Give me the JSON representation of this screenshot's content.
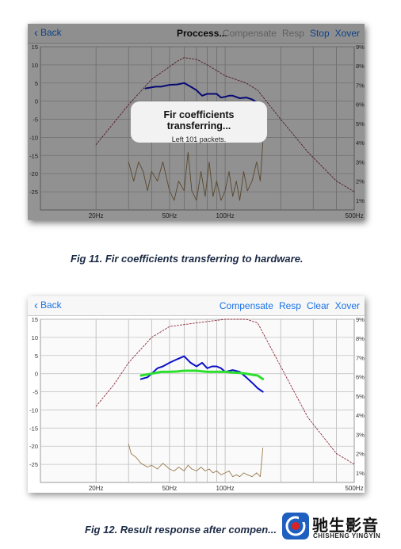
{
  "figure1": {
    "nav": {
      "back_label": "Back",
      "title": "Proccess...",
      "actions": [
        {
          "label": "Compensate",
          "enabled": false
        },
        {
          "label": "Resp",
          "enabled": false
        },
        {
          "label": "Stop",
          "enabled": true
        },
        {
          "label": "Xover",
          "enabled": true
        }
      ]
    },
    "dialog": {
      "title": "Fir coefficients transferring...",
      "message": "Left 101 packets."
    },
    "caption": "Fig 11. Fir coefficients transferring to hardware."
  },
  "figure2": {
    "nav": {
      "back_label": "Back",
      "actions": [
        {
          "label": "Compensate",
          "enabled": true
        },
        {
          "label": "Resp",
          "enabled": true
        },
        {
          "label": "Clear",
          "enabled": true
        },
        {
          "label": "Xover",
          "enabled": true
        }
      ]
    },
    "caption": "Fig 12. Result response after compen..."
  },
  "logo": {
    "text": "驰生影音",
    "subtext": "CHISHENG YINGYIN"
  },
  "colors": {
    "accent": "#1a73e8",
    "disabled": "#a6a6a6",
    "response": "#0b10c8",
    "compensated": "#2ee02e",
    "distortion": "#9a7b4f",
    "crossover": "#8b2a3a"
  },
  "chart_data": [
    {
      "type": "line",
      "panel": "fig11",
      "xscale": "log",
      "xlim": [
        10,
        500
      ],
      "ylim": [
        -30,
        15
      ],
      "y2lim": [
        0.5,
        9
      ],
      "y_ticks": [
        "15",
        "10",
        "5",
        "0",
        "-5",
        "-10",
        "-15",
        "-20",
        "-25"
      ],
      "y2_ticks": [
        "9%",
        "8%",
        "7%",
        "6%",
        "5%",
        "4%",
        "3%",
        "2%",
        "1%"
      ],
      "x_ticks": [
        "20Hz",
        "50Hz",
        "100Hz",
        "500Hz"
      ],
      "series": [
        {
          "role": "crossover",
          "axis": "y",
          "x": [
            20,
            30,
            40,
            55,
            60,
            70,
            80,
            100,
            130,
            150,
            200,
            280,
            400,
            500
          ],
          "y": [
            -12,
            -1,
            6,
            11,
            12,
            11.5,
            10,
            7,
            5,
            3,
            -5,
            -14,
            -22,
            -25
          ]
        },
        {
          "role": "response",
          "axis": "y",
          "x": [
            37,
            42,
            45,
            50,
            55,
            60,
            65,
            70,
            75,
            80,
            85,
            90,
            95,
            100,
            105,
            110,
            120,
            130,
            140,
            150,
            160
          ],
          "y": [
            3.5,
            4,
            4,
            4.5,
            4.6,
            5,
            4,
            3,
            1.5,
            2,
            2,
            2,
            1,
            1.2,
            1.5,
            1.5,
            0.8,
            1,
            0.5,
            -0.5,
            -1
          ]
        },
        {
          "role": "distortion",
          "axis": "y2",
          "x": [
            30,
            32,
            34,
            36,
            38,
            40,
            43,
            46,
            50,
            53,
            56,
            60,
            63,
            66,
            70,
            74,
            78,
            82,
            86,
            90,
            95,
            100,
            105,
            110,
            115,
            120,
            126,
            132,
            140,
            148,
            155,
            160
          ],
          "y": [
            3,
            2,
            3,
            2.5,
            1.5,
            2.5,
            2,
            3,
            1.5,
            1,
            2,
            1.5,
            3.5,
            1.5,
            1,
            2.5,
            1.2,
            3,
            1.2,
            2,
            1,
            1.5,
            2.5,
            1.2,
            2,
            1,
            2.5,
            1.5,
            2,
            3,
            2,
            4
          ]
        }
      ]
    },
    {
      "type": "line",
      "panel": "fig12",
      "xscale": "log",
      "xlim": [
        10,
        500
      ],
      "ylim": [
        -30,
        15
      ],
      "y2lim": [
        0.5,
        9
      ],
      "y_ticks": [
        "15",
        "10",
        "5",
        "0",
        "-5",
        "-10",
        "-15",
        "-20",
        "-25"
      ],
      "y2_ticks": [
        "9%",
        "8%",
        "7%",
        "6%",
        "5%",
        "4%",
        "3%",
        "2%",
        "1%"
      ],
      "x_ticks": [
        "20Hz",
        "50Hz",
        "100Hz",
        "500Hz"
      ],
      "series": [
        {
          "role": "crossover",
          "axis": "y",
          "x": [
            20,
            25,
            30,
            40,
            50,
            70,
            100,
            130,
            150,
            200,
            280,
            400,
            500
          ],
          "y": [
            -9,
            -3,
            3,
            10,
            13,
            14,
            15,
            15,
            14,
            2,
            -12,
            -22,
            -25
          ]
        },
        {
          "role": "response",
          "axis": "y",
          "x": [
            35,
            38,
            40,
            43,
            46,
            50,
            55,
            60,
            65,
            70,
            75,
            80,
            85,
            90,
            95,
            100,
            110,
            120,
            130,
            140,
            150,
            160
          ],
          "y": [
            -1.5,
            -1,
            0,
            1.5,
            2,
            3,
            4,
            4.8,
            3,
            2,
            3,
            1.5,
            2,
            2,
            1.5,
            0.5,
            1,
            0.5,
            -1,
            -2.5,
            -4,
            -5
          ]
        },
        {
          "role": "compensated",
          "axis": "y",
          "x": [
            35,
            40,
            45,
            50,
            55,
            60,
            65,
            70,
            80,
            90,
            100,
            110,
            120,
            130,
            140,
            150,
            160
          ],
          "y": [
            -0.5,
            0,
            0.5,
            0.5,
            0.6,
            0.8,
            0.8,
            0.8,
            0.5,
            0.5,
            0.5,
            0.3,
            0.2,
            0,
            -0.3,
            -0.5,
            -1.5
          ]
        },
        {
          "role": "distortion",
          "axis": "y2",
          "x": [
            30,
            31,
            33,
            35,
            38,
            40,
            43,
            46,
            50,
            53,
            56,
            60,
            63,
            66,
            70,
            74,
            78,
            82,
            86,
            90,
            95,
            100,
            105,
            110,
            115,
            120,
            126,
            132,
            140,
            148,
            155,
            160
          ],
          "y": [
            2.5,
            2,
            1.8,
            1.5,
            1.3,
            1.4,
            1.2,
            1.5,
            1.2,
            1.1,
            1.3,
            1.1,
            1.4,
            1.2,
            1.1,
            1.3,
            1.1,
            1.2,
            1.0,
            1.1,
            0.9,
            1.0,
            1.1,
            0.8,
            0.9,
            0.8,
            1.0,
            0.9,
            0.8,
            1.0,
            0.8,
            2.3
          ]
        }
      ]
    }
  ]
}
